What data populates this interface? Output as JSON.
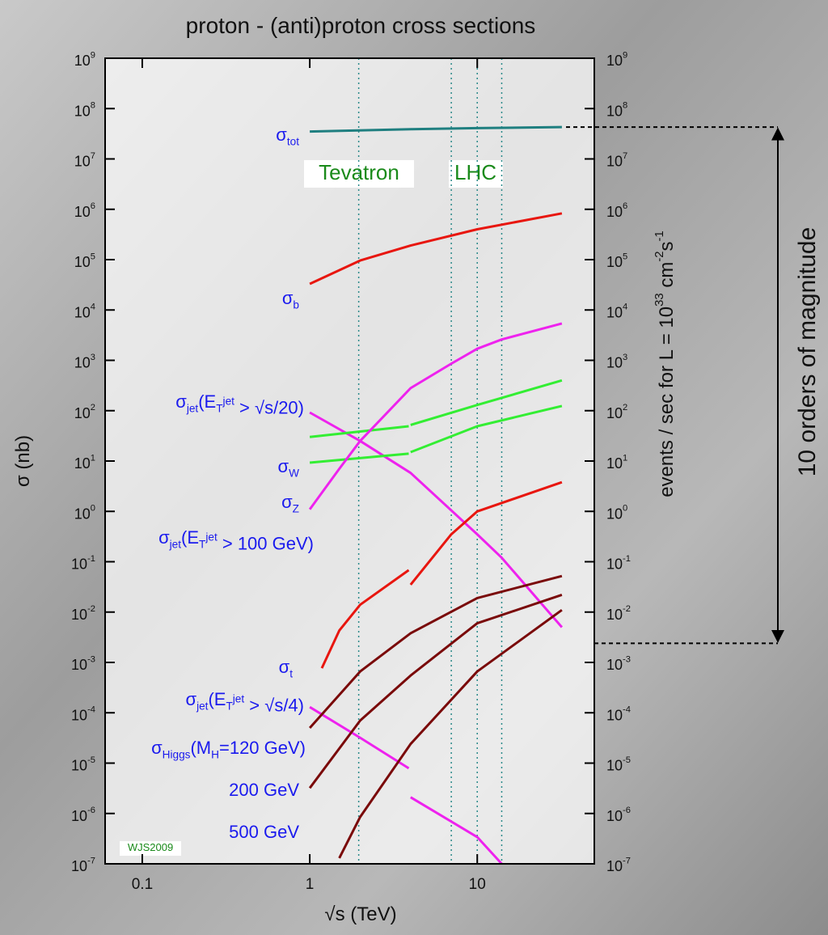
{
  "chart_data": {
    "type": "line",
    "title": "proton - (anti)proton cross sections",
    "x_label": "√s (TeV)",
    "y_label": "σ (nb)",
    "y2_label": "events / sec for L = 10^{33} cm^{-2}s^{-1}",
    "log_x": true,
    "log_y": true,
    "xlim": [
      0.06,
      50
    ],
    "ylim": [
      1e-07,
      1000000000
    ],
    "y2lim": [
      1e-07,
      1000000000
    ],
    "xticks": [
      0.1,
      1,
      10
    ],
    "yticks": [
      {
        "value": 1e-07,
        "label": "10^{-7}"
      },
      {
        "value": 1e-06,
        "label": "10^{-6}"
      },
      {
        "value": 1e-05,
        "label": "10^{-5}"
      },
      {
        "value": 0.0001,
        "label": "10^{-4}"
      },
      {
        "value": 0.001,
        "label": "10^{-3}"
      },
      {
        "value": 0.01,
        "label": "10^{-2}"
      },
      {
        "value": 0.1,
        "label": "10^{-1}"
      },
      {
        "value": 1,
        "label": "10^{0}"
      },
      {
        "value": 10,
        "label": "10^{1}"
      },
      {
        "value": 100,
        "label": "10^{2}"
      },
      {
        "value": 1000,
        "label": "10^{3}"
      },
      {
        "value": 10000,
        "label": "10^{4}"
      },
      {
        "value": 100000,
        "label": "10^{5}"
      },
      {
        "value": 1000000,
        "label": "10^{6}"
      },
      {
        "value": 10000000,
        "label": "10^{7}"
      },
      {
        "value": 100000000,
        "label": "10^{8}"
      },
      {
        "value": 1000000000,
        "label": "10^{9}"
      }
    ],
    "y2ticks": [
      {
        "value": 1e-07,
        "label": "10^{-7}"
      },
      {
        "value": 1e-06,
        "label": "10^{-6}"
      },
      {
        "value": 1e-05,
        "label": "10^{-5}"
      },
      {
        "value": 0.0001,
        "label": "10^{-4}"
      },
      {
        "value": 0.001,
        "label": "10^{-3}"
      },
      {
        "value": 0.01,
        "label": "10^{-2}"
      },
      {
        "value": 0.1,
        "label": "10^{-1}"
      },
      {
        "value": 1,
        "label": "10^{0}"
      },
      {
        "value": 10,
        "label": "10^{1}"
      },
      {
        "value": 100,
        "label": "10^{2}"
      },
      {
        "value": 1000,
        "label": "10^{3}"
      },
      {
        "value": 10000,
        "label": "10^{4}"
      },
      {
        "value": 100000,
        "label": "10^{5}"
      },
      {
        "value": 1000000,
        "label": "10^{6}"
      },
      {
        "value": 10000000,
        "label": "10^{7}"
      },
      {
        "value": 100000000,
        "label": "10^{8}"
      },
      {
        "value": 1000000000,
        "label": "10^{9}"
      }
    ],
    "series": [
      {
        "name": "σ_{tot}",
        "color": "#1f7f80",
        "x": [
          1,
          4,
          10,
          32
        ],
        "values": [
          35000000,
          39000000,
          41000000,
          43000000
        ]
      },
      {
        "name": "σ_{b}",
        "color": "#e8160f",
        "x": [
          1,
          2,
          4,
          10,
          32
        ],
        "values": [
          33000,
          96000,
          190000,
          400000,
          830000
        ]
      },
      {
        "name": "σ_{jet}(E_{T}^{jet} > √s/20)",
        "color": "#ee22ee",
        "x": [
          1,
          2,
          4,
          10,
          14,
          32
        ],
        "values": [
          92,
          25,
          5.8,
          0.35,
          0.12,
          0.005
        ]
      },
      {
        "name": "σ_{W}",
        "color": "#33ee33",
        "x": [
          1,
          3.9,
          3.95,
          4,
          10,
          32
        ],
        "values": [
          30,
          49,
          null,
          52,
          130,
          400
        ]
      },
      {
        "name": "σ_{Z}",
        "color": "#33ee33",
        "x": [
          1,
          3.9,
          3.95,
          4,
          10,
          32
        ],
        "values": [
          9.3,
          14,
          null,
          15,
          49,
          124
        ]
      },
      {
        "name": "σ_{jet}(E_{T}^{jet} > 100 GeV)",
        "color": "#ee22ee",
        "x": [
          1,
          1.5,
          2,
          4,
          7,
          10,
          14,
          32
        ],
        "values": [
          1.1,
          7,
          25,
          280,
          860,
          1700,
          2600,
          5400
        ]
      },
      {
        "name": "σ_{t}",
        "color": "#e8160f",
        "x": [
          1.18,
          1.5,
          2,
          3.9,
          3.95,
          4,
          7,
          10,
          32
        ],
        "values": [
          0.00077,
          0.0043,
          0.014,
          0.068,
          null,
          0.035,
          0.35,
          1,
          3.8
        ]
      },
      {
        "name": "σ_{jet}(E_{T}^{jet} > √s/4)",
        "color": "#ee22ee",
        "x": [
          1,
          2,
          3.9,
          3.95,
          4,
          10,
          14
        ],
        "values": [
          0.00013,
          3.2e-05,
          7.9e-06,
          null,
          2.1e-06,
          3.4e-07,
          1e-07
        ]
      },
      {
        "name": "σ_{Higgs}(M_{H}=120 GeV)",
        "color": "#7a0a0a",
        "x": [
          1,
          2,
          4,
          10,
          32
        ],
        "values": [
          5e-05,
          0.00066,
          0.0038,
          0.019,
          0.052
        ]
      },
      {
        "name": "200 GeV",
        "color": "#7a0a0a",
        "x": [
          1,
          2,
          4,
          10,
          32
        ],
        "values": [
          3.2e-06,
          7e-05,
          0.00055,
          0.006,
          0.022
        ]
      },
      {
        "name": "500 GeV",
        "color": "#7a0a0a",
        "x": [
          1.5,
          2,
          4,
          10,
          32
        ],
        "values": [
          1.3e-07,
          8.5e-07,
          2.4e-05,
          0.00066,
          0.011
        ]
      }
    ],
    "vlines": [
      1.96,
      7,
      10,
      14
    ],
    "hlines": [
      43000000,
      0.0024
    ],
    "annotations": [
      "Tevatron",
      "LHC",
      "WJS2009",
      "10 orders of magnitude"
    ]
  }
}
